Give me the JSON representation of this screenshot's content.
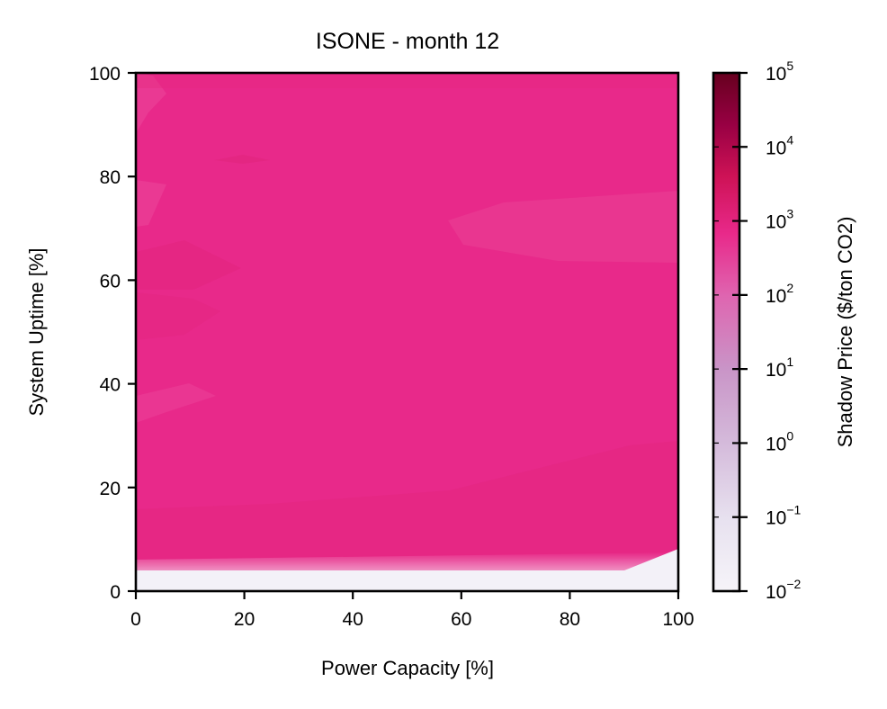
{
  "chart_data": {
    "type": "heatmap",
    "title": "ISONE - month 12",
    "xlabel": "Power Capacity [%]",
    "ylabel": "System Uptime [%]",
    "xlim": [
      0,
      100
    ],
    "ylim": [
      0,
      100
    ],
    "x_ticks": [
      "0",
      "20",
      "40",
      "60",
      "80",
      "100"
    ],
    "y_ticks": [
      "0",
      "20",
      "40",
      "60",
      "80",
      "100"
    ],
    "colorbar": {
      "label": "Shadow Price ($/ton CO2)",
      "scale": "log",
      "range": [
        0.01,
        100000
      ],
      "tick_base": "10",
      "tick_exponents": [
        "−2",
        "−1",
        "0",
        "1",
        "2",
        "3",
        "4",
        "5"
      ],
      "colors": [
        "#f6f4f9",
        "#e5e0ef",
        "#d4b9da",
        "#c994c7",
        "#df65b0",
        "#e7298a",
        "#ce1256",
        "#980043",
        "#67001f"
      ]
    },
    "fill_color": "#e8298a",
    "summary": "Shadow price is about 200 $/ton CO2 over nearly the whole grid; it drops to the colorbar minimum (near 0.01) only along the bottom edge where system uptime is below about 4-8%.",
    "regions": [
      {
        "description": "System uptime below ~4% (below ~8% at power capacity 100%)",
        "value": 0.01
      },
      {
        "description": "Rest of the grid",
        "value": 200
      }
    ]
  }
}
